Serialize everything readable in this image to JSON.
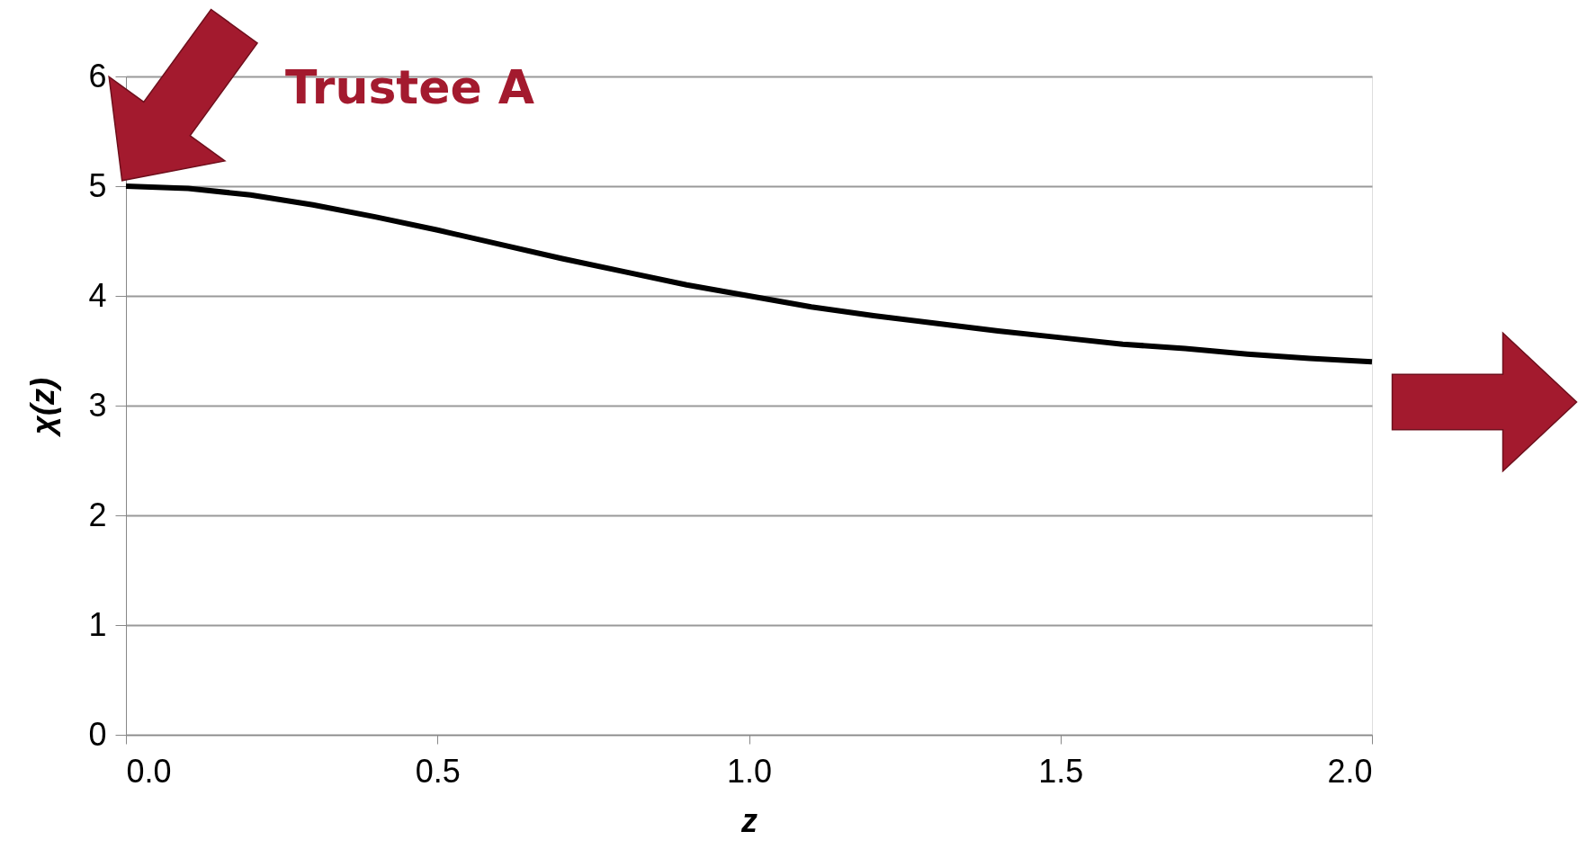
{
  "chart_data": {
    "type": "line",
    "xlabel": "z",
    "ylabel": "χ(z)",
    "x": [
      0,
      0.1,
      0.2,
      0.3,
      0.4,
      0.5,
      0.6,
      0.7,
      0.8,
      0.9,
      1.0,
      1.1,
      1.2,
      1.3,
      1.4,
      1.5,
      1.6,
      1.7,
      1.8,
      1.9,
      2.0
    ],
    "series": [
      {
        "color": "#000000",
        "values": [
          5.0,
          4.98,
          4.92,
          4.83,
          4.72,
          4.6,
          4.47,
          4.34,
          4.22,
          4.1,
          4.0,
          3.9,
          3.82,
          3.75,
          3.68,
          3.62,
          3.56,
          3.52,
          3.47,
          3.43,
          3.4
        ]
      }
    ],
    "xlim": [
      0,
      2
    ],
    "xticks": [
      {
        "value": 0,
        "label": "0.0"
      },
      {
        "value": 0.5,
        "label": "0.5"
      },
      {
        "value": 1,
        "label": "1.0"
      },
      {
        "value": 1.5,
        "label": "1.5"
      },
      {
        "value": 2,
        "label": "2.0"
      }
    ],
    "ylim": [
      0,
      6
    ],
    "yticks": [
      0,
      1,
      2,
      3,
      4,
      5,
      6
    ],
    "grid": "y",
    "marker": "none",
    "line_style": "solid",
    "annotations": [
      "Trustee A"
    ]
  }
}
